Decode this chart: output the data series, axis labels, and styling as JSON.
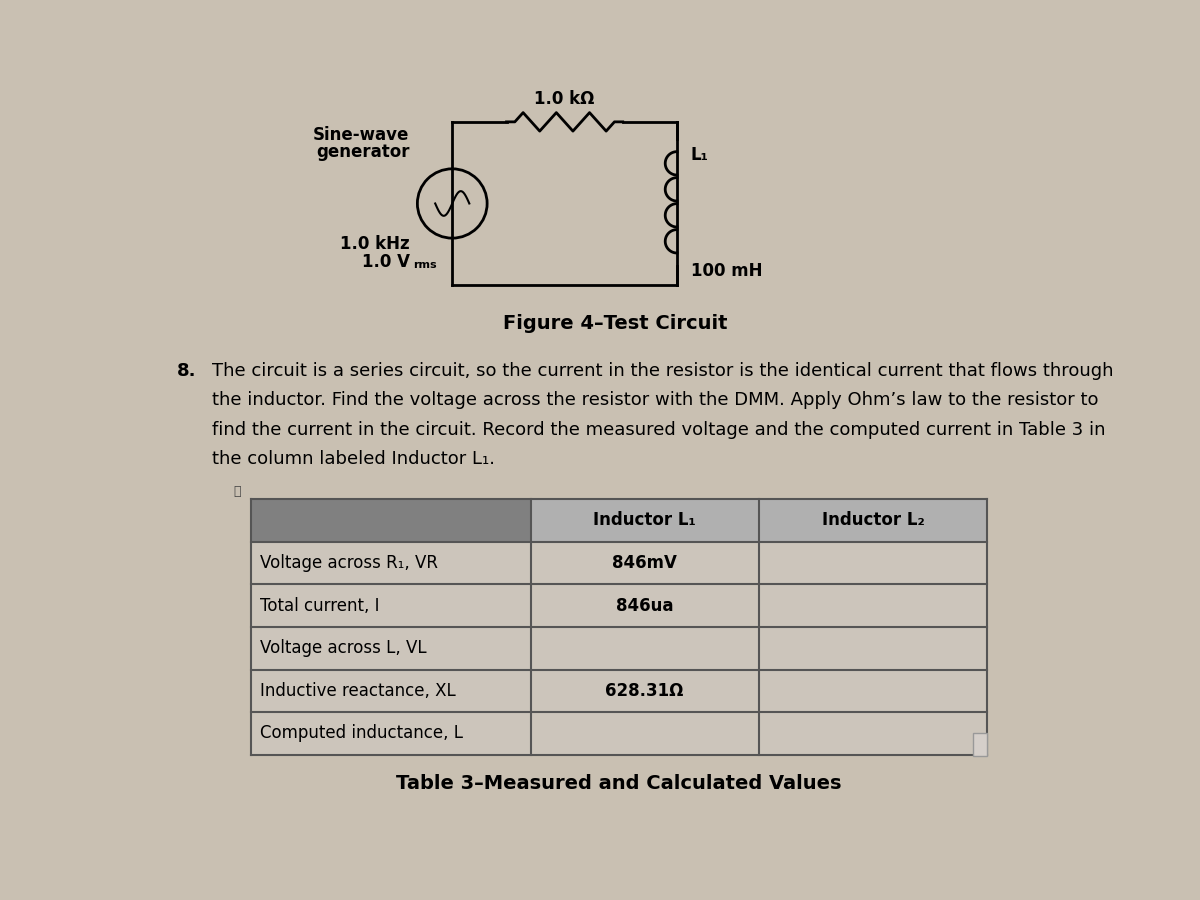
{
  "bg_color": "#c9c0b2",
  "figure_caption": "Figure 4–Test Circuit",
  "paragraph_number": "8.",
  "paragraph_lines": [
    "The circuit is a series circuit, so the current in the resistor is the identical current that flows through",
    "the inductor. Find the voltage across the resistor with the DMM. Apply Ohm’s law to the resistor to",
    "find the current in the circuit. Record the measured voltage and the computed current in Table 3 in",
    "the column labeled Inductor L₁."
  ],
  "circuit": {
    "generator_label_line1": "Sine-wave",
    "generator_label_line2": "generator",
    "freq_label": "1.0 kHz",
    "volt_label_main": "1.0 V",
    "volt_label_sub": "rms",
    "resistor_label": "1.0 kΩ",
    "inductor_label": "L₁",
    "inductor_value": "100 mH"
  },
  "table": {
    "title": "Table 3–Measured and Calculated Values",
    "header_left_bg": "#888888",
    "header_right_bg": "#aaaaaa",
    "cell_bg": "#d8d0c8",
    "col_headers": [
      "Inductor L₁",
      "Inductor L₂"
    ],
    "row_labels": [
      "Voltage across R₁, VR",
      "Total current, I",
      "Voltage across L, VL",
      "Inductive reactance, XL",
      "Computed inductance, L"
    ],
    "data": [
      [
        "846mV",
        ""
      ],
      [
        "846ua",
        ""
      ],
      [
        "",
        ""
      ],
      [
        "628.31Ω",
        ""
      ],
      [
        "",
        ""
      ]
    ]
  }
}
